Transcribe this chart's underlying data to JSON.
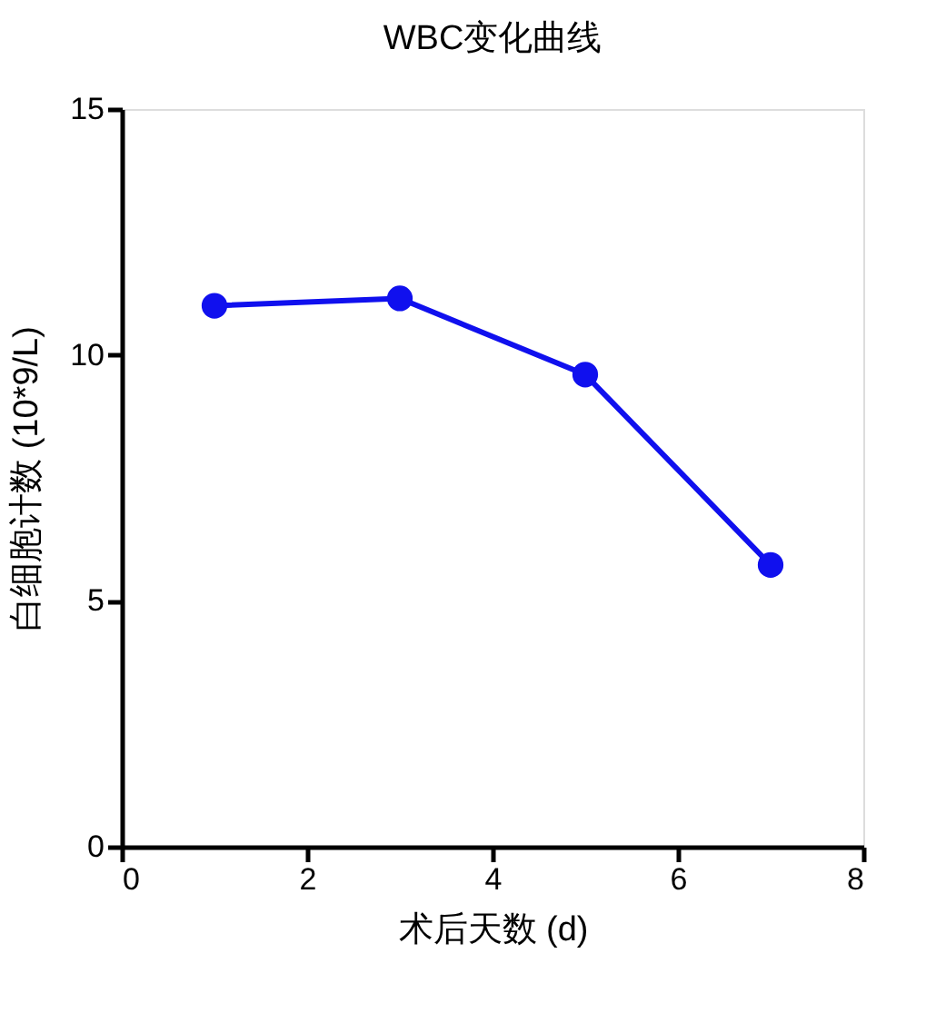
{
  "chart_data": {
    "type": "line",
    "title": "WBC变化曲线",
    "xlabel": "术后天数 (d)",
    "ylabel": "白细胞计数 (10*9/L)",
    "x": [
      1,
      3,
      5,
      7
    ],
    "series": [
      {
        "color": "#1010ee",
        "values": [
          11.0,
          11.15,
          9.6,
          5.73
        ]
      }
    ],
    "xlim": [
      0,
      8
    ],
    "xticks": [
      0,
      2,
      4,
      6,
      8
    ],
    "ylim": [
      0,
      15
    ],
    "yticks": [
      0,
      5,
      10,
      15
    ],
    "grid": false,
    "legend": false,
    "marker": "circle",
    "line_style": "solid"
  }
}
